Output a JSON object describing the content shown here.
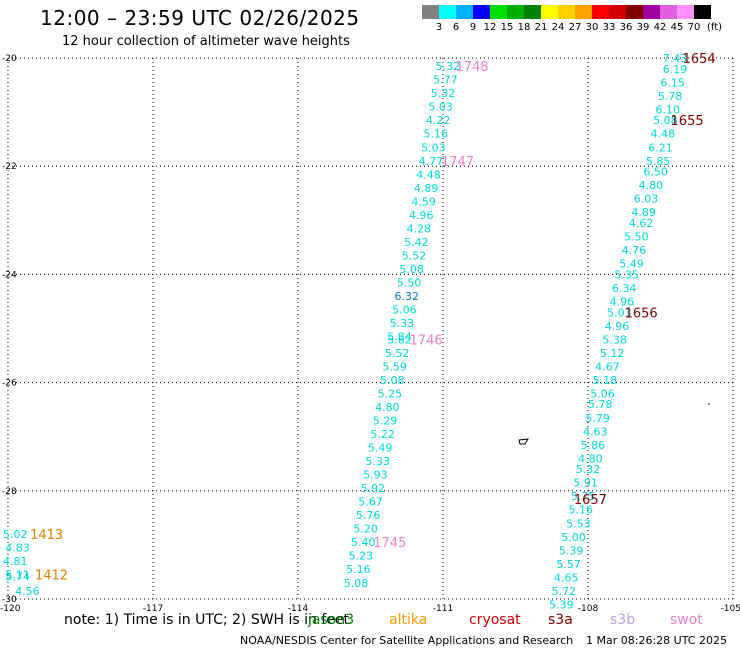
{
  "header": {
    "title": "12:00 – 23:59 UTC 02/26/2025",
    "subtitle": "12 hour collection of altimeter wave heights"
  },
  "colorbar": {
    "colors": [
      "#808080",
      "#00ffff",
      "#00b0ff",
      "#0000ff",
      "#00e000",
      "#00b000",
      "#008000",
      "#ffff00",
      "#ffd000",
      "#ffa000",
      "#ff0000",
      "#d00000",
      "#800000",
      "#a000a0",
      "#e060e0",
      "#ff90ff",
      "#000000"
    ],
    "labels": [
      "3",
      "6",
      "9",
      "12",
      "15",
      "18",
      "21",
      "24",
      "27",
      "30",
      "33",
      "36",
      "39",
      "42",
      "45",
      "70"
    ],
    "unit": "(ft)"
  },
  "map": {
    "lon_labels": [
      "-120",
      "-117",
      "-114",
      "-111",
      "-108",
      "-105"
    ],
    "lat_labels": [
      "-20",
      "-22",
      "-24",
      "-26",
      "-28",
      "-30"
    ],
    "lon_range": [
      -120,
      -105
    ],
    "lat_range": [
      -20,
      -30
    ]
  },
  "tracks": [
    {
      "id": "east-track",
      "points": [
        {
          "lon": -106.2,
          "lat": -20.0,
          "v": "7.43"
        },
        {
          "lon": -106.2,
          "lat": -20.2,
          "v": "6.19"
        },
        {
          "lon": -106.25,
          "lat": -20.45,
          "v": "6.15"
        },
        {
          "lon": -106.3,
          "lat": -20.7,
          "v": "5.78"
        },
        {
          "lon": -106.35,
          "lat": -20.95,
          "v": "6.10"
        },
        {
          "lon": -106.4,
          "lat": -21.15,
          "v": "5.08"
        },
        {
          "lon": -106.45,
          "lat": -21.4,
          "v": "4.48"
        },
        {
          "lon": -106.5,
          "lat": -21.65,
          "v": "6.21"
        },
        {
          "lon": -106.55,
          "lat": -21.9,
          "v": "5.85"
        },
        {
          "lon": -106.6,
          "lat": -22.1,
          "v": "6.50"
        },
        {
          "lon": -106.7,
          "lat": -22.35,
          "v": "4.80"
        },
        {
          "lon": -106.8,
          "lat": -22.6,
          "v": "6.03"
        },
        {
          "lon": -106.85,
          "lat": -22.85,
          "v": "4.89"
        },
        {
          "lon": -106.9,
          "lat": -23.05,
          "v": "4.62"
        },
        {
          "lon": -107.0,
          "lat": -23.3,
          "v": "5.50"
        },
        {
          "lon": -107.05,
          "lat": -23.55,
          "v": "4.76"
        },
        {
          "lon": -107.1,
          "lat": -23.8,
          "v": "5.49"
        },
        {
          "lon": -107.2,
          "lat": -24.0,
          "v": "5.35"
        },
        {
          "lon": -107.25,
          "lat": -24.25,
          "v": "6.34"
        },
        {
          "lon": -107.3,
          "lat": -24.5,
          "v": "4.96"
        },
        {
          "lon": -107.35,
          "lat": -24.7,
          "v": "5.03"
        },
        {
          "lon": -107.4,
          "lat": -24.95,
          "v": "4.96"
        },
        {
          "lon": -107.45,
          "lat": -25.2,
          "v": "5.38"
        },
        {
          "lon": -107.5,
          "lat": -25.45,
          "v": "5.12"
        },
        {
          "lon": -107.6,
          "lat": -25.7,
          "v": "4.67"
        },
        {
          "lon": -107.65,
          "lat": -25.95,
          "v": "5.18"
        },
        {
          "lon": -107.7,
          "lat": -26.2,
          "v": "5.06"
        },
        {
          "lon": -107.75,
          "lat": -26.4,
          "v": "5.78"
        },
        {
          "lon": -107.8,
          "lat": -26.65,
          "v": "5.79"
        },
        {
          "lon": -107.85,
          "lat": -26.9,
          "v": "4.63"
        },
        {
          "lon": -107.9,
          "lat": -27.15,
          "v": "5.86"
        },
        {
          "lon": -107.95,
          "lat": -27.4,
          "v": "4.80"
        },
        {
          "lon": -108.0,
          "lat": -27.6,
          "v": "5.32"
        },
        {
          "lon": -108.05,
          "lat": -27.85,
          "v": "5.91"
        },
        {
          "lon": -108.1,
          "lat": -28.1,
          "v": "5.75"
        },
        {
          "lon": -108.15,
          "lat": -28.35,
          "v": "5.16"
        },
        {
          "lon": -108.2,
          "lat": -28.6,
          "v": "5.53"
        },
        {
          "lon": -108.3,
          "lat": -28.85,
          "v": "5.00"
        },
        {
          "lon": -108.35,
          "lat": -29.1,
          "v": "5.39"
        },
        {
          "lon": -108.4,
          "lat": -29.35,
          "v": "5.57"
        },
        {
          "lon": -108.45,
          "lat": -29.6,
          "v": "4.65"
        },
        {
          "lon": -108.5,
          "lat": -29.85,
          "v": "5.72"
        },
        {
          "lon": -108.55,
          "lat": -30.1,
          "v": "5.39"
        }
      ]
    },
    {
      "id": "central-track",
      "points": [
        {
          "lon": -110.9,
          "lat": -20.15,
          "v": "5.32"
        },
        {
          "lon": -110.95,
          "lat": -20.4,
          "v": "5.77"
        },
        {
          "lon": -111.0,
          "lat": -20.65,
          "v": "5.32"
        },
        {
          "lon": -111.05,
          "lat": -20.9,
          "v": "5.03"
        },
        {
          "lon": -111.1,
          "lat": -21.15,
          "v": "4.22"
        },
        {
          "lon": -111.15,
          "lat": -21.4,
          "v": "5.16"
        },
        {
          "lon": -111.2,
          "lat": -21.65,
          "v": "5.03"
        },
        {
          "lon": -111.25,
          "lat": -21.9,
          "v": "4.77"
        },
        {
          "lon": -111.3,
          "lat": -22.15,
          "v": "4.48"
        },
        {
          "lon": -111.35,
          "lat": -22.4,
          "v": "4.89"
        },
        {
          "lon": -111.4,
          "lat": -22.65,
          "v": "4.59"
        },
        {
          "lon": -111.45,
          "lat": -22.9,
          "v": "4.96"
        },
        {
          "lon": -111.5,
          "lat": -23.15,
          "v": "4.28"
        },
        {
          "lon": -111.55,
          "lat": -23.4,
          "v": "5.42"
        },
        {
          "lon": -111.6,
          "lat": -23.65,
          "v": "5.52"
        },
        {
          "lon": -111.65,
          "lat": -23.9,
          "v": "5.08"
        },
        {
          "lon": -111.7,
          "lat": -24.15,
          "v": "5.50"
        },
        {
          "lon": -111.75,
          "lat": -24.4,
          "v": "6.32",
          "dark": true
        },
        {
          "lon": -111.8,
          "lat": -24.65,
          "v": "5.06"
        },
        {
          "lon": -111.85,
          "lat": -24.9,
          "v": "5.33"
        },
        {
          "lon": -111.9,
          "lat": -25.15,
          "v": "5.84"
        },
        {
          "lon": -111.9,
          "lat": -25.2,
          "v": "5.82"
        },
        {
          "lon": -111.95,
          "lat": -25.45,
          "v": "5.52"
        },
        {
          "lon": -112.0,
          "lat": -25.7,
          "v": "5.59"
        },
        {
          "lon": -112.05,
          "lat": -25.95,
          "v": "5.08"
        },
        {
          "lon": -112.1,
          "lat": -26.2,
          "v": "5.25"
        },
        {
          "lon": -112.15,
          "lat": -26.45,
          "v": "4.80"
        },
        {
          "lon": -112.2,
          "lat": -26.7,
          "v": "5.29"
        },
        {
          "lon": -112.25,
          "lat": -26.95,
          "v": "5.22"
        },
        {
          "lon": -112.3,
          "lat": -27.2,
          "v": "5.49"
        },
        {
          "lon": -112.35,
          "lat": -27.45,
          "v": "5.33"
        },
        {
          "lon": -112.4,
          "lat": -27.7,
          "v": "5.93"
        },
        {
          "lon": -112.45,
          "lat": -27.95,
          "v": "5.92"
        },
        {
          "lon": -112.5,
          "lat": -28.2,
          "v": "5.67"
        },
        {
          "lon": -112.55,
          "lat": -28.45,
          "v": "5.76"
        },
        {
          "lon": -112.6,
          "lat": -28.7,
          "v": "5.20"
        },
        {
          "lon": -112.65,
          "lat": -28.95,
          "v": "5.40"
        },
        {
          "lon": -112.7,
          "lat": -29.2,
          "v": "5.23"
        },
        {
          "lon": -112.75,
          "lat": -29.45,
          "v": "5.16"
        },
        {
          "lon": -112.8,
          "lat": -29.7,
          "v": "5.08"
        }
      ]
    },
    {
      "id": "west-track",
      "points": [
        {
          "lon": -119.85,
          "lat": -28.8,
          "v": "5.02"
        },
        {
          "lon": -119.8,
          "lat": -29.05,
          "v": "4.83"
        },
        {
          "lon": -119.85,
          "lat": -29.3,
          "v": "4.81"
        },
        {
          "lon": -119.8,
          "lat": -29.55,
          "v": "5.11"
        },
        {
          "lon": -119.8,
          "lat": -29.58,
          "v": "5.74"
        },
        {
          "lon": -119.6,
          "lat": -29.85,
          "v": "4.56"
        }
      ]
    }
  ],
  "pass_labels": [
    {
      "text": "1654",
      "lon": -105.7,
      "lat": -20.0,
      "color": "#800000"
    },
    {
      "text": "1655",
      "lon": -105.95,
      "lat": -21.15,
      "color": "#800000"
    },
    {
      "text": "1656",
      "lon": -106.9,
      "lat": -24.7,
      "color": "#800000"
    },
    {
      "text": "1657",
      "lon": -107.95,
      "lat": -28.15,
      "color": "#800000"
    },
    {
      "text": "1748",
      "lon": -110.4,
      "lat": -20.15,
      "color": "#f080d0"
    },
    {
      "text": "1747",
      "lon": -110.7,
      "lat": -21.9,
      "color": "#f080d0"
    },
    {
      "text": "1746",
      "lon": -111.35,
      "lat": -25.2,
      "color": "#f080d0"
    },
    {
      "text": "1745",
      "lon": -112.1,
      "lat": -28.95,
      "color": "#f080d0"
    },
    {
      "text": "1413",
      "lon": -119.2,
      "lat": -28.8,
      "color": "#e08000"
    },
    {
      "text": "1412",
      "lon": -119.1,
      "lat": -29.55,
      "color": "#e08000"
    }
  ],
  "footer": {
    "note": "note:  1) Time is in UTC; 2) SWH is in feet",
    "satellites": [
      {
        "name": "jason3",
        "color": "#008000"
      },
      {
        "name": "altika",
        "color": "#ff9900"
      },
      {
        "name": "cryosat",
        "color": "#d00000"
      },
      {
        "name": "s3a",
        "color": "#800000"
      },
      {
        "name": "s3b",
        "color": "#c0a0f0"
      },
      {
        "name": "swot",
        "color": "#f080d0"
      }
    ],
    "credit": "NOAA/NESDIS Center for Satellite Applications and Research",
    "timestamp": "1 Mar 08:26:28 UTC 2025"
  }
}
